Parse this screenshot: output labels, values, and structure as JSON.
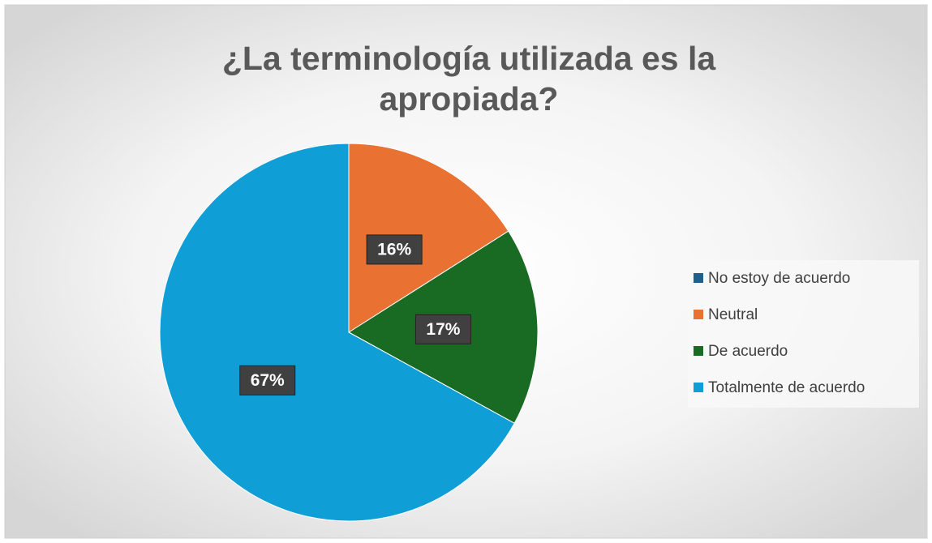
{
  "chart_data": {
    "type": "pie",
    "title": "¿La terminología utilizada es la apropiada?",
    "categories": [
      "No estoy de acuerdo",
      "Neutral",
      "De acuerdo",
      "Totalmente de acuerdo"
    ],
    "values": [
      0,
      16,
      17,
      67
    ],
    "value_labels": [
      null,
      "16%",
      "17%",
      "67%"
    ],
    "colors": [
      "#1f5f8b",
      "#e97132",
      "#196b24",
      "#0f9ed5"
    ],
    "legend": "right"
  }
}
